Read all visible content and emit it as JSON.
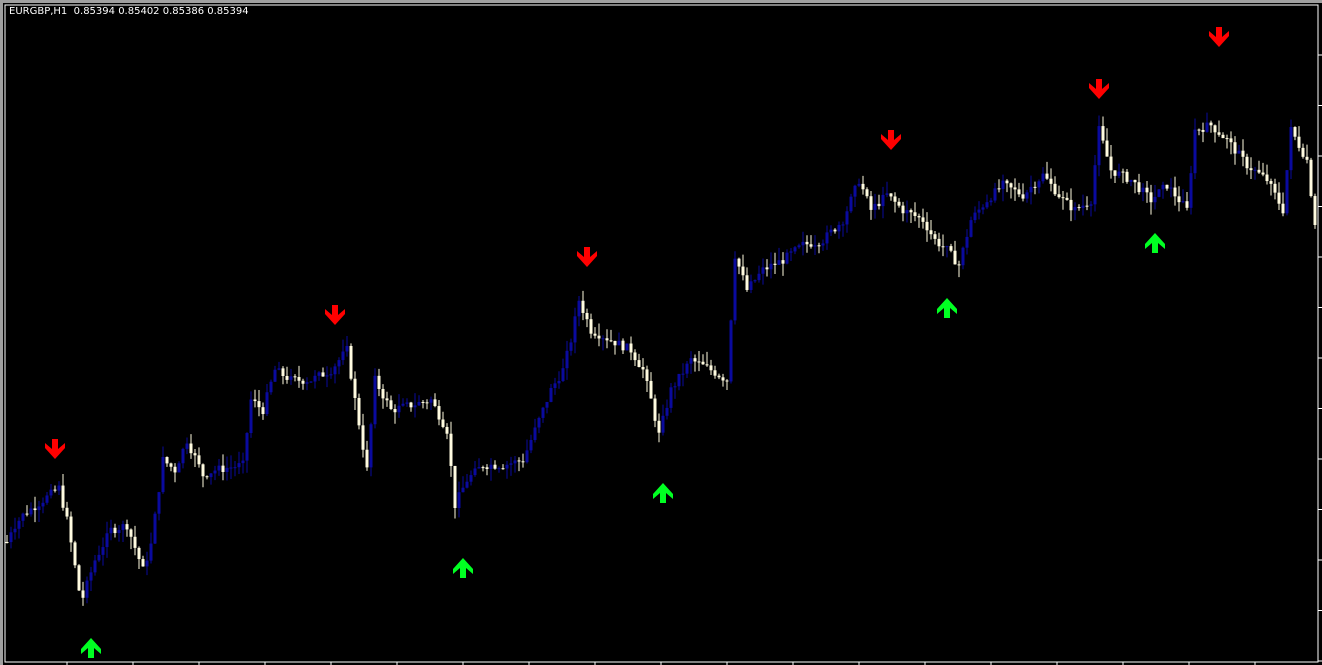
{
  "header": {
    "symbol": "EURGBP,H1",
    "ohlc": "0.85394 0.85402 0.85386 0.85394"
  },
  "colors": {
    "background": "#000000",
    "bull_candle": "#0a0a9e",
    "bear_candle": "#fffbe0",
    "sell_arrow": "#ff0000",
    "buy_arrow": "#00ff22",
    "frame": "#ffffff"
  },
  "chart_data": {
    "type": "candlestick",
    "title": "EURGBP,H1",
    "last_close": 0.85394,
    "ylim": [
      0.8452,
      0.85834
    ],
    "bars": 328,
    "grid": false,
    "close_path": [
      [
        0,
        0.8476
      ],
      [
        1,
        0.84784
      ],
      [
        4,
        0.84814
      ],
      [
        9,
        0.84844
      ],
      [
        13,
        0.84868
      ],
      [
        15,
        0.84804
      ],
      [
        18,
        0.84664
      ],
      [
        19,
        0.8465
      ],
      [
        22,
        0.84724
      ],
      [
        26,
        0.84784
      ],
      [
        30,
        0.84794
      ],
      [
        34,
        0.84704
      ],
      [
        36,
        0.84754
      ],
      [
        39,
        0.84924
      ],
      [
        42,
        0.84904
      ],
      [
        45,
        0.84964
      ],
      [
        49,
        0.84894
      ],
      [
        52,
        0.84904
      ],
      [
        59,
        0.84914
      ],
      [
        61,
        0.85044
      ],
      [
        64,
        0.85024
      ],
      [
        67,
        0.85104
      ],
      [
        71,
        0.85084
      ],
      [
        76,
        0.85084
      ],
      [
        81,
        0.85104
      ],
      [
        85,
        0.85144
      ],
      [
        87,
        0.85044
      ],
      [
        90,
        0.84904
      ],
      [
        92,
        0.85084
      ],
      [
        96,
        0.85024
      ],
      [
        101,
        0.85034
      ],
      [
        106,
        0.85044
      ],
      [
        110,
        0.84984
      ],
      [
        112,
        0.84834
      ],
      [
        115,
        0.84884
      ],
      [
        119,
        0.84914
      ],
      [
        124,
        0.84914
      ],
      [
        129,
        0.84924
      ],
      [
        132,
        0.84984
      ],
      [
        136,
        0.85064
      ],
      [
        139,
        0.85104
      ],
      [
        141,
        0.85164
      ],
      [
        143,
        0.85244
      ],
      [
        146,
        0.85184
      ],
      [
        151,
        0.85164
      ],
      [
        156,
        0.85144
      ],
      [
        159,
        0.85104
      ],
      [
        161,
        0.85044
      ],
      [
        163,
        0.84974
      ],
      [
        166,
        0.85064
      ],
      [
        171,
        0.85124
      ],
      [
        176,
        0.85104
      ],
      [
        180,
        0.85084
      ],
      [
        182,
        0.85334
      ],
      [
        185,
        0.85264
      ],
      [
        189,
        0.85304
      ],
      [
        194,
        0.85324
      ],
      [
        199,
        0.85354
      ],
      [
        204,
        0.85364
      ],
      [
        209,
        0.85404
      ],
      [
        213,
        0.85484
      ],
      [
        216,
        0.85424
      ],
      [
        220,
        0.85454
      ],
      [
        224,
        0.85424
      ],
      [
        229,
        0.85404
      ],
      [
        232,
        0.85364
      ],
      [
        235,
        0.85344
      ],
      [
        238,
        0.85314
      ],
      [
        241,
        0.85404
      ],
      [
        245,
        0.85444
      ],
      [
        249,
        0.85474
      ],
      [
        254,
        0.85454
      ],
      [
        259,
        0.85494
      ],
      [
        264,
        0.85444
      ],
      [
        267,
        0.85424
      ],
      [
        271,
        0.85444
      ],
      [
        273,
        0.85584
      ],
      [
        276,
        0.85504
      ],
      [
        281,
        0.85484
      ],
      [
        286,
        0.85444
      ],
      [
        290,
        0.85474
      ],
      [
        295,
        0.85424
      ],
      [
        297,
        0.85584
      ],
      [
        301,
        0.85594
      ],
      [
        305,
        0.85564
      ],
      [
        310,
        0.85514
      ],
      [
        315,
        0.85484
      ],
      [
        319,
        0.85424
      ],
      [
        321,
        0.85584
      ],
      [
        325,
        0.85524
      ],
      [
        327,
        0.85394
      ]
    ],
    "sell_signals": [
      [
        12,
        0.8494
      ],
      [
        82,
        0.85208
      ],
      [
        145,
        0.85324
      ],
      [
        221,
        0.85558
      ],
      [
        273,
        0.8566
      ],
      [
        303,
        0.85764
      ]
    ],
    "buy_signals": [
      [
        21,
        0.84554
      ],
      [
        114,
        0.84714
      ],
      [
        164,
        0.84864
      ],
      [
        235,
        0.85234
      ],
      [
        287,
        0.85364
      ]
    ]
  }
}
